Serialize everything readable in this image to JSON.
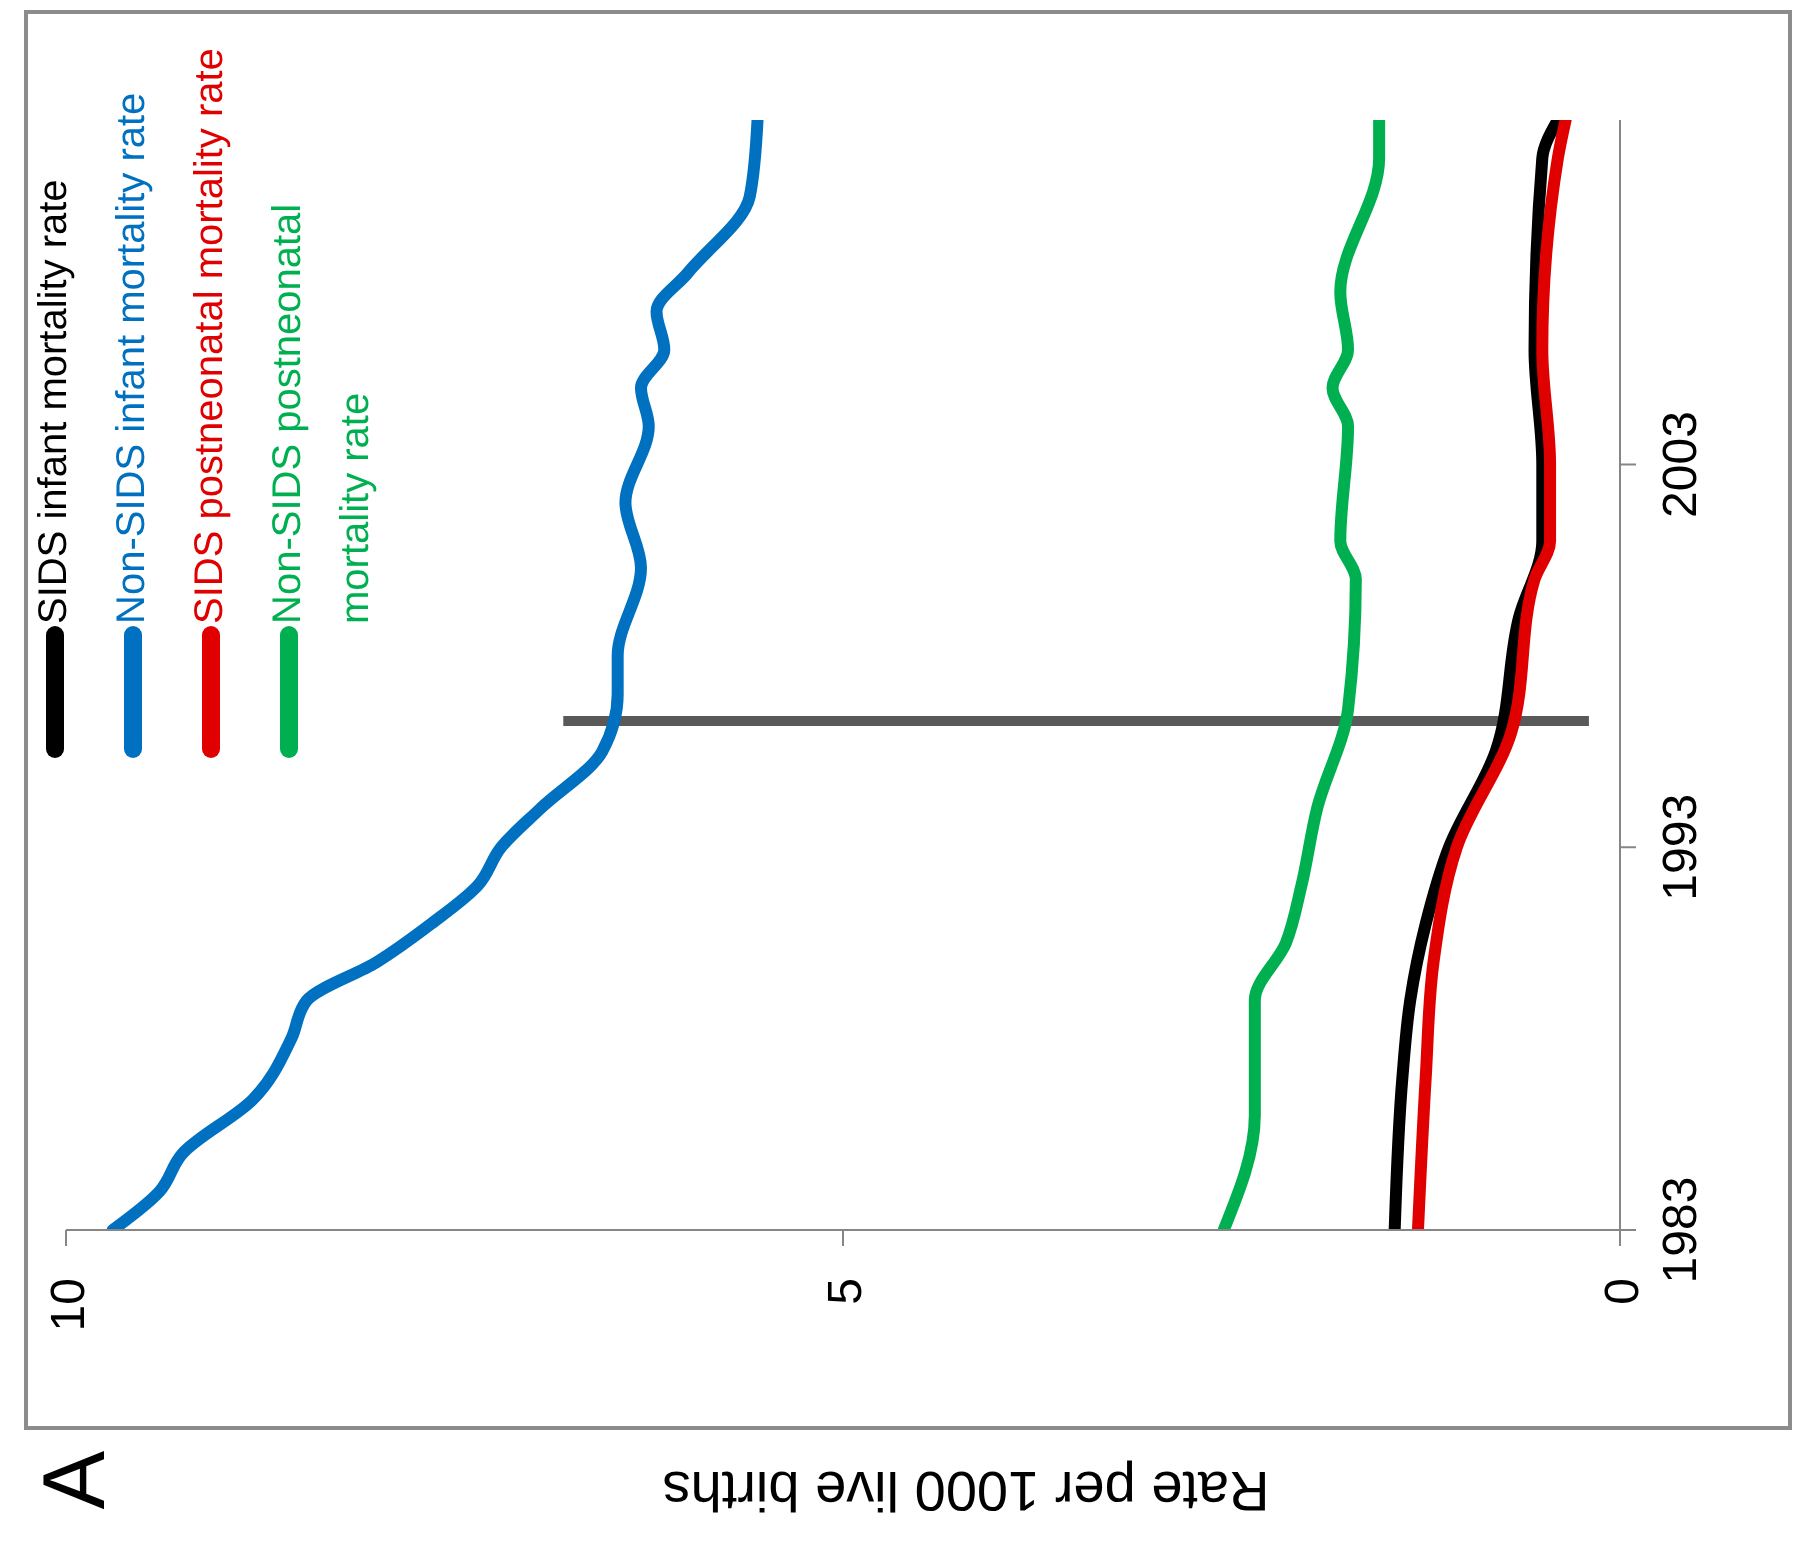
{
  "chart_data": {
    "type": "line",
    "xlabel": "Rate per 1000 live births",
    "annotations": [
      "A"
    ],
    "xlim": [
      10,
      0
    ],
    "xticks": [
      10,
      5,
      0
    ],
    "ylim": [
      1983,
      2012
    ],
    "yticks": [
      1983,
      1993,
      2003
    ],
    "grid": false,
    "legend": "top left",
    "marker": "none",
    "line_style": "solid",
    "ref_lines": [
      {
        "axis": "y",
        "value": 1996.3,
        "color": "#595959"
      }
    ],
    "series": [
      {
        "name": "SIDS infant mortality rate",
        "color": "#000000",
        "values": [
          1983,
          1987,
          1989,
          1991,
          1993,
          1995.5,
          1999,
          2001,
          2003,
          2006,
          2011,
          2012
        ],
        "x": [
          1.45,
          1.4,
          1.35,
          1.25,
          1.1,
          0.8,
          0.65,
          0.5,
          0.5,
          0.55,
          0.5,
          0.4
        ]
      },
      {
        "name": "Non-SIDS infant mortality rate",
        "color": "#0070c0",
        "values": [
          1983,
          1984,
          1985,
          1986.4,
          1988,
          1989,
          1990,
          1991,
          1992,
          1993,
          1994,
          1995.5,
          1997,
          1998,
          2000.3,
          2002,
          2004,
          2005,
          2006,
          2007,
          2008,
          2010,
          2012
        ],
        "x": [
          9.7,
          9.4,
          9.25,
          8.8,
          8.55,
          8.45,
          8.0,
          7.65,
          7.35,
          7.2,
          6.95,
          6.55,
          6.45,
          6.45,
          6.3,
          6.4,
          6.25,
          6.3,
          6.15,
          6.2,
          6.0,
          5.6,
          5.55
        ]
      },
      {
        "name": "SIDS postneonatal mortality rate",
        "color": "#e00000",
        "values": [
          1983,
          1987,
          1990,
          1993,
          1996,
          2000,
          2001,
          2003,
          2006,
          2011,
          2012
        ],
        "x": [
          1.3,
          1.25,
          1.2,
          1.05,
          0.7,
          0.55,
          0.45,
          0.45,
          0.5,
          0.4,
          0.35
        ]
      },
      {
        "name": "Non-SIDS postneonatal mortality rate",
        "color": "#00b050",
        "values": [
          1983,
          1986,
          1989,
          1990.5,
          1992,
          1994,
          1996.6,
          2000,
          2001,
          2004,
          2005,
          2006,
          2007.5,
          2011,
          2012
        ],
        "x": [
          2.55,
          2.35,
          2.35,
          2.15,
          2.05,
          1.95,
          1.75,
          1.7,
          1.8,
          1.75,
          1.85,
          1.75,
          1.8,
          1.55,
          1.55
        ]
      }
    ]
  }
}
